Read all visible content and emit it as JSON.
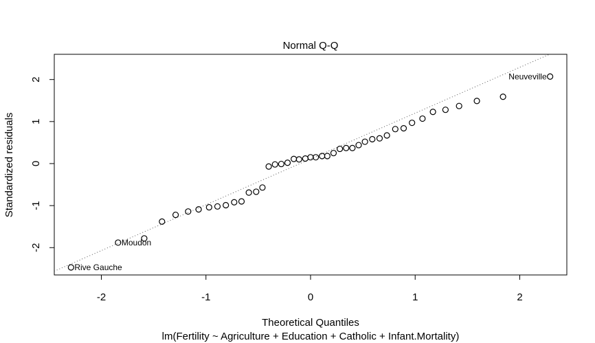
{
  "chart_data": {
    "type": "scatter",
    "title": "Normal Q-Q",
    "xlabel": "Theoretical Quantiles",
    "subtitle": "lm(Fertility ~ Agriculture + Education + Catholic + Infant.Mortality)",
    "ylabel": "Standardized residuals",
    "xlim": [
      -2.45,
      2.45
    ],
    "ylim": [
      -2.65,
      2.6
    ],
    "xticks": [
      -2,
      -1,
      0,
      1,
      2
    ],
    "yticks": [
      -2,
      -1,
      0,
      1,
      2
    ],
    "grid": false,
    "legend": "none",
    "reference_line": {
      "style": "dotted",
      "intercept": 0.11,
      "slope": 1.09
    },
    "points": [
      {
        "x": -2.29,
        "y": -2.47
      },
      {
        "x": -1.84,
        "y": -1.88
      },
      {
        "x": -1.59,
        "y": -1.78
      },
      {
        "x": -1.42,
        "y": -1.38
      },
      {
        "x": -1.29,
        "y": -1.22
      },
      {
        "x": -1.17,
        "y": -1.14
      },
      {
        "x": -1.07,
        "y": -1.09
      },
      {
        "x": -0.97,
        "y": -1.04
      },
      {
        "x": -0.89,
        "y": -1.02
      },
      {
        "x": -0.81,
        "y": -0.99
      },
      {
        "x": -0.73,
        "y": -0.92
      },
      {
        "x": -0.66,
        "y": -0.9
      },
      {
        "x": -0.59,
        "y": -0.69
      },
      {
        "x": -0.52,
        "y": -0.67
      },
      {
        "x": -0.46,
        "y": -0.57
      },
      {
        "x": -0.4,
        "y": -0.07
      },
      {
        "x": -0.34,
        "y": -0.02
      },
      {
        "x": -0.28,
        "y": -0.01
      },
      {
        "x": -0.22,
        "y": 0.02
      },
      {
        "x": -0.16,
        "y": 0.11
      },
      {
        "x": -0.11,
        "y": 0.1
      },
      {
        "x": -0.05,
        "y": 0.12
      },
      {
        "x": 0.0,
        "y": 0.15
      },
      {
        "x": 0.05,
        "y": 0.15
      },
      {
        "x": 0.11,
        "y": 0.18
      },
      {
        "x": 0.16,
        "y": 0.18
      },
      {
        "x": 0.22,
        "y": 0.25
      },
      {
        "x": 0.28,
        "y": 0.35
      },
      {
        "x": 0.34,
        "y": 0.37
      },
      {
        "x": 0.4,
        "y": 0.37
      },
      {
        "x": 0.46,
        "y": 0.44
      },
      {
        "x": 0.52,
        "y": 0.52
      },
      {
        "x": 0.59,
        "y": 0.58
      },
      {
        "x": 0.66,
        "y": 0.6
      },
      {
        "x": 0.73,
        "y": 0.67
      },
      {
        "x": 0.81,
        "y": 0.82
      },
      {
        "x": 0.89,
        "y": 0.84
      },
      {
        "x": 0.97,
        "y": 0.97
      },
      {
        "x": 1.07,
        "y": 1.07
      },
      {
        "x": 1.17,
        "y": 1.23
      },
      {
        "x": 1.29,
        "y": 1.28
      },
      {
        "x": 1.42,
        "y": 1.37
      },
      {
        "x": 1.59,
        "y": 1.49
      },
      {
        "x": 1.84,
        "y": 1.59
      },
      {
        "x": 2.29,
        "y": 2.07
      }
    ],
    "annotations": [
      {
        "text": "Rive Gauche",
        "x": -2.29,
        "y": -2.47,
        "side": "right"
      },
      {
        "text": "Moudon",
        "x": -1.84,
        "y": -1.88,
        "side": "right"
      },
      {
        "text": "Neuveville",
        "x": 2.29,
        "y": 2.07,
        "side": "left"
      }
    ]
  }
}
